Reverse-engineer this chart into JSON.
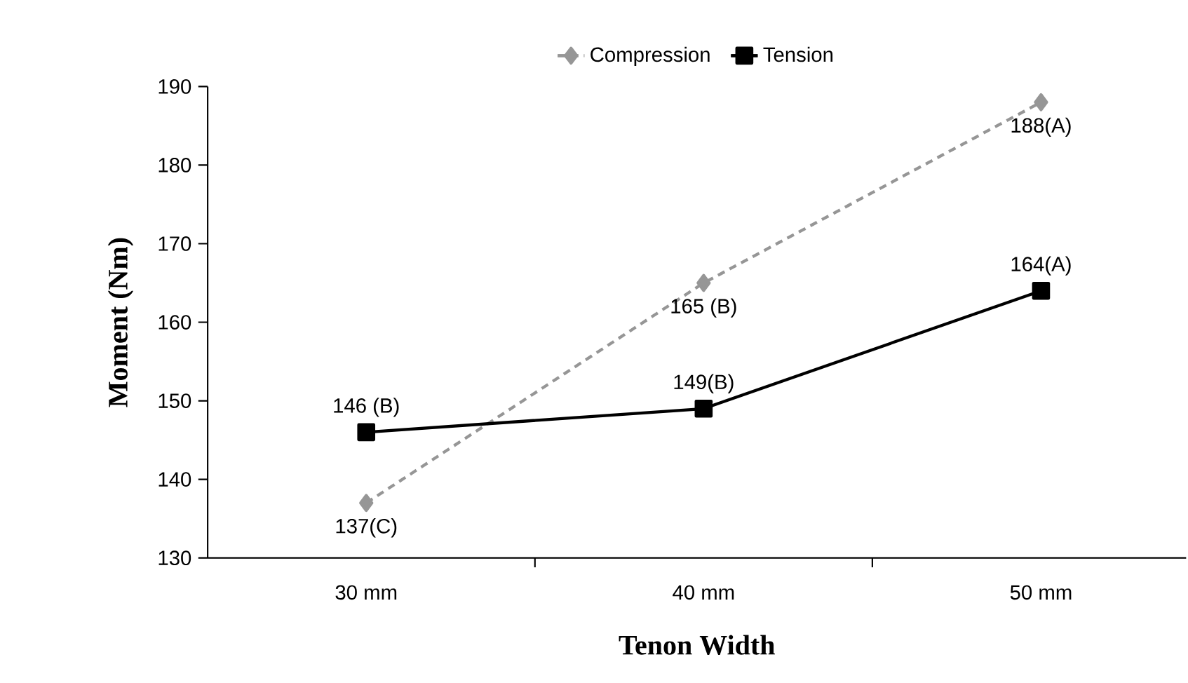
{
  "chart_data": {
    "type": "line",
    "xlabel": "Tenon Width",
    "ylabel": "Moment (Nm)",
    "categories": [
      "30 mm",
      "40 mm",
      "50 mm"
    ],
    "series": [
      {
        "name": "Compression",
        "color": "#969696",
        "values": [
          137,
          165,
          188
        ],
        "marker": "diamond",
        "line_style": "dashed",
        "value_labels": [
          "137(C)",
          "165 (B)",
          "188(A)"
        ]
      },
      {
        "name": "Tension",
        "color": "#000000",
        "values": [
          146,
          149,
          164
        ],
        "marker": "square",
        "line_style": "solid",
        "value_labels": [
          "146 (B)",
          "149(B)",
          "164(A)"
        ]
      }
    ],
    "ylim": [
      130,
      190
    ],
    "yticks": [
      130,
      140,
      150,
      160,
      170,
      180,
      190
    ],
    "grid": false,
    "legend": "top"
  }
}
